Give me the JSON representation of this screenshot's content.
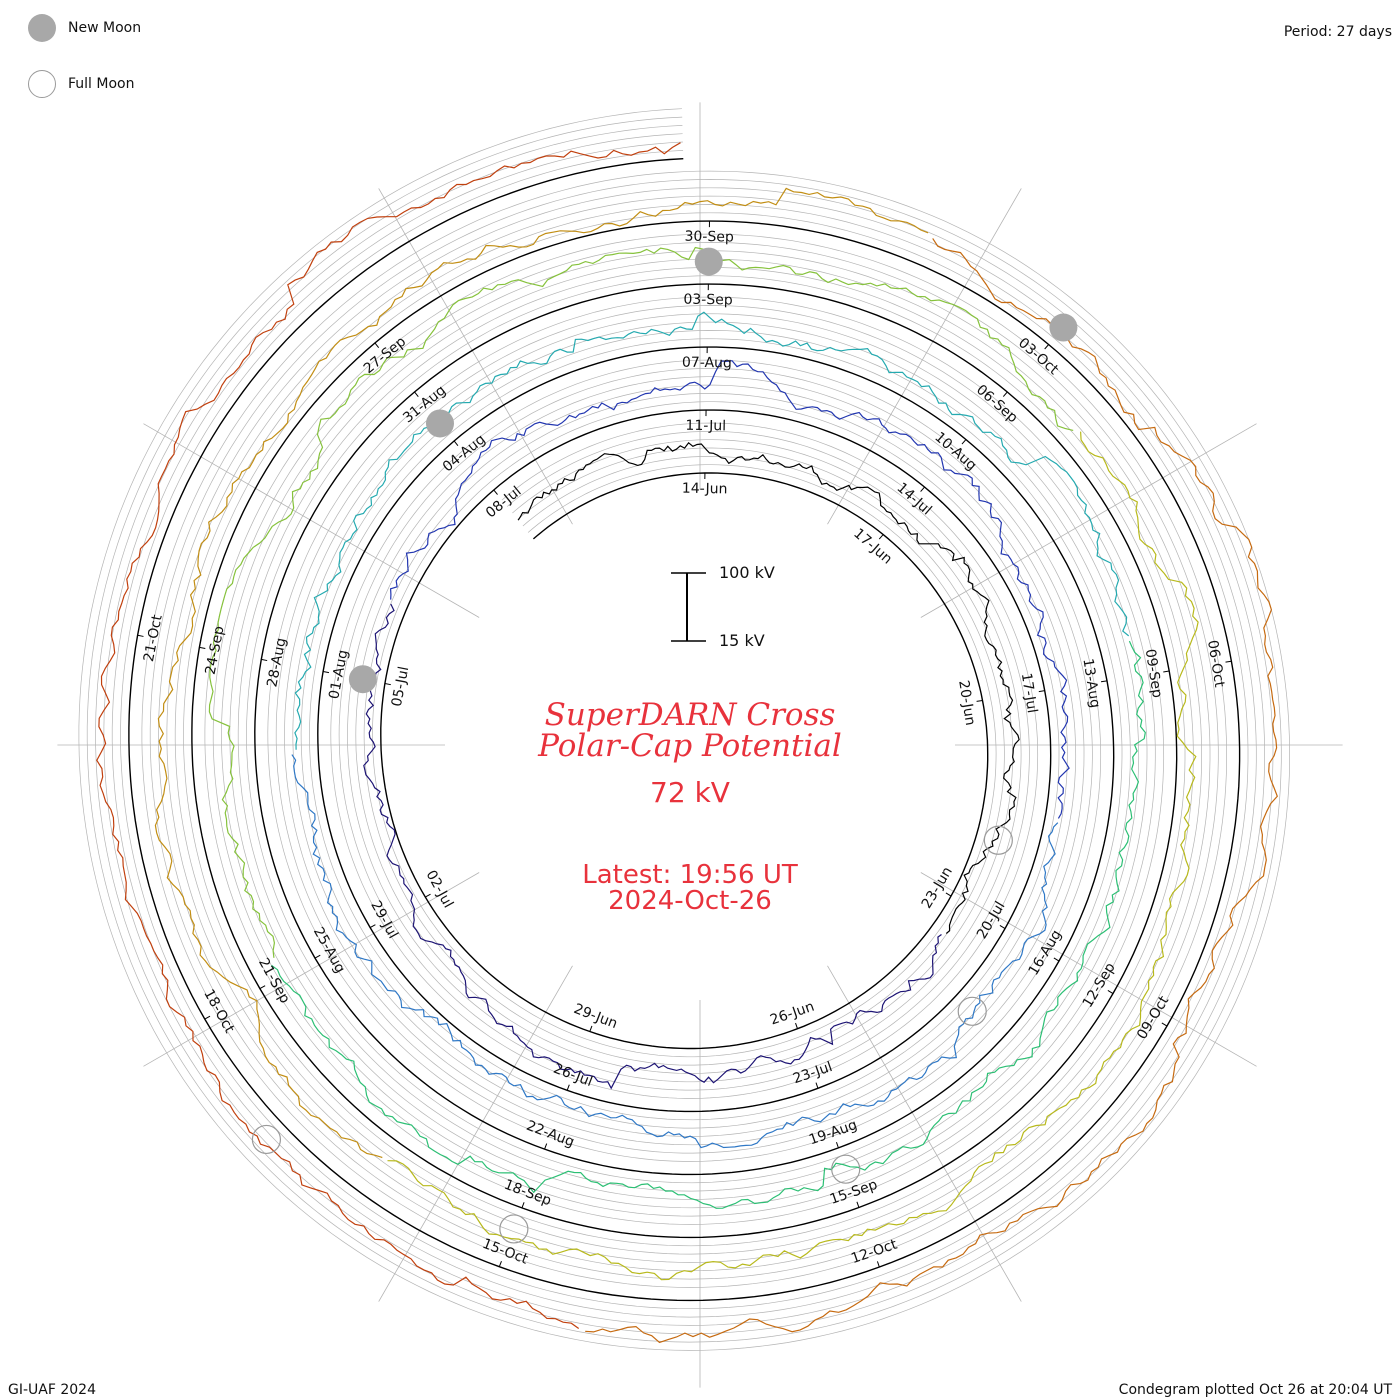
{
  "legend": {
    "new_moon_label": "New Moon",
    "full_moon_label": "Full Moon"
  },
  "period_label": "Period: 27 days",
  "footer": {
    "left": "GI-UAF 2024",
    "right": "Condegram plotted Oct 26 at 20:04 UT"
  },
  "center": {
    "title_line1": "SuperDARN Cross",
    "title_line2": "Polar-Cap Potential",
    "value": "72 kV",
    "latest_line1": "Latest: 19:56 UT",
    "latest_line2": "2024-Oct-26"
  },
  "scale_bar": {
    "top_label": "100 kV",
    "bottom_label": "15 kV"
  },
  "colors": {
    "title": "#e8323c",
    "axis": "#000000",
    "grid": "#b4b4b4",
    "new_moon": "#a8a8a8"
  },
  "chart_data": {
    "type": "line",
    "subtype": "condegram-spiral",
    "period_days": 27,
    "start_date": "2024-06-11",
    "end_date": "2024-10-26",
    "value_range_kv": [
      15,
      100
    ],
    "current_value_kv": 72,
    "date_labels": [
      "14-Jun",
      "17-Jun",
      "20-Jun",
      "23-Jun",
      "26-Jun",
      "29-Jun",
      "02-Jul",
      "05-Jul",
      "08-Jul",
      "11-Jul",
      "14-Jul",
      "17-Jul",
      "20-Jul",
      "23-Jul",
      "26-Jul",
      "29-Jul",
      "01-Aug",
      "04-Aug",
      "07-Aug",
      "10-Aug",
      "13-Aug",
      "16-Aug",
      "19-Aug",
      "22-Aug",
      "25-Aug",
      "28-Aug",
      "31-Aug",
      "03-Sep",
      "06-Sep",
      "09-Sep",
      "12-Sep",
      "15-Sep",
      "18-Sep",
      "21-Sep",
      "24-Sep",
      "27-Sep",
      "30-Sep",
      "03-Oct",
      "06-Oct",
      "09-Oct",
      "12-Oct",
      "15-Oct",
      "18-Oct",
      "21-Oct"
    ],
    "series_colors": [
      "#000000",
      "#1d1474",
      "#2236b0",
      "#2f78c6",
      "#25aab0",
      "#2cbf74",
      "#86c23c",
      "#b8b91c",
      "#c28e14",
      "#c66a10",
      "#c1400e",
      "#c01010"
    ],
    "new_moons": [
      "2024-07-05",
      "2024-08-04",
      "2024-09-03",
      "2024-10-03"
    ],
    "full_moons": [
      "2024-06-22",
      "2024-07-21",
      "2024-08-19",
      "2024-09-18",
      "2024-10-17"
    ]
  }
}
